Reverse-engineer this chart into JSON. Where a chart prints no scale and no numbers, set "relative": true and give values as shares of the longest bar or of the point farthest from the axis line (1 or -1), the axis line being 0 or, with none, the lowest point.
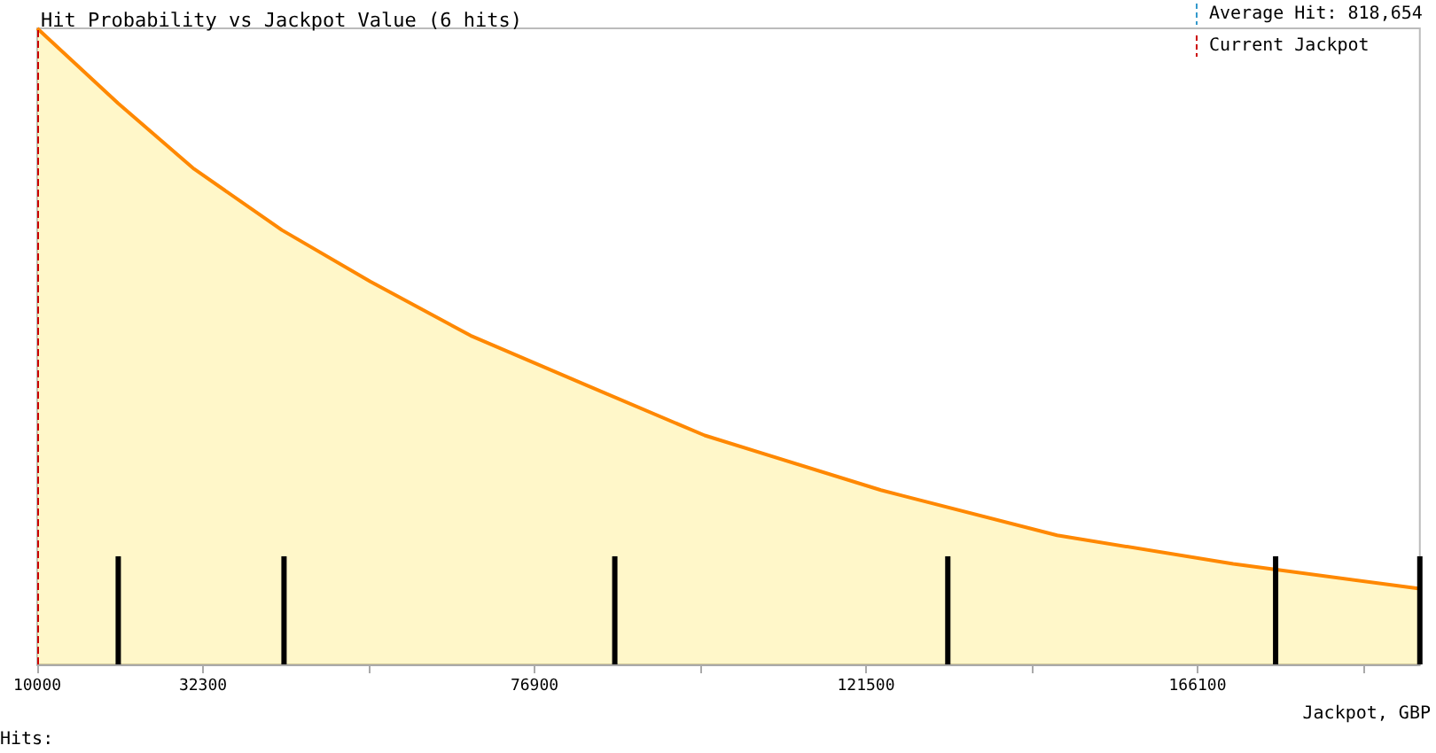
{
  "chart_data": {
    "type": "area",
    "title": "Hit Probability vs Jackpot Value (6 hits)",
    "xlabel": "Jackpot, GBP",
    "relative": true,
    "grid": false,
    "xlim": [
      10000,
      196000
    ],
    "xticks": [
      10000,
      32300,
      {
        "value": 54600,
        "label": null
      },
      76900,
      {
        "value": 99200,
        "label": null
      },
      121500,
      {
        "value": 143800,
        "label": null
      },
      166100,
      {
        "value": 188400,
        "label": null
      }
    ],
    "series": [
      {
        "color": "#ff8800",
        "x": [
          10000,
          20900,
          31100,
          42900,
          54800,
          68300,
          83900,
          99800,
          123500,
          147200,
          170900,
          196000
        ],
        "values": [
          1,
          0.882,
          0.779,
          0.683,
          0.602,
          0.517,
          0.439,
          0.36,
          0.274,
          0.203,
          0.158,
          0.119
        ]
      },
      {
        "type": "bar",
        "color": "#000000",
        "x": [
          20900,
          43200,
          87700,
          132500,
          176600,
          196000
        ],
        "values": [
          0.17,
          0.17,
          0.17,
          0.17,
          0.17,
          0.17
        ]
      }
    ],
    "ref_lines": [
      {
        "axis": "x",
        "value": 10000,
        "color": "#cc0000",
        "line_style": "dashed"
      }
    ],
    "annotations": [
      "Average Hit: 818,654",
      "Current Jackpot",
      "Hits:"
    ]
  }
}
